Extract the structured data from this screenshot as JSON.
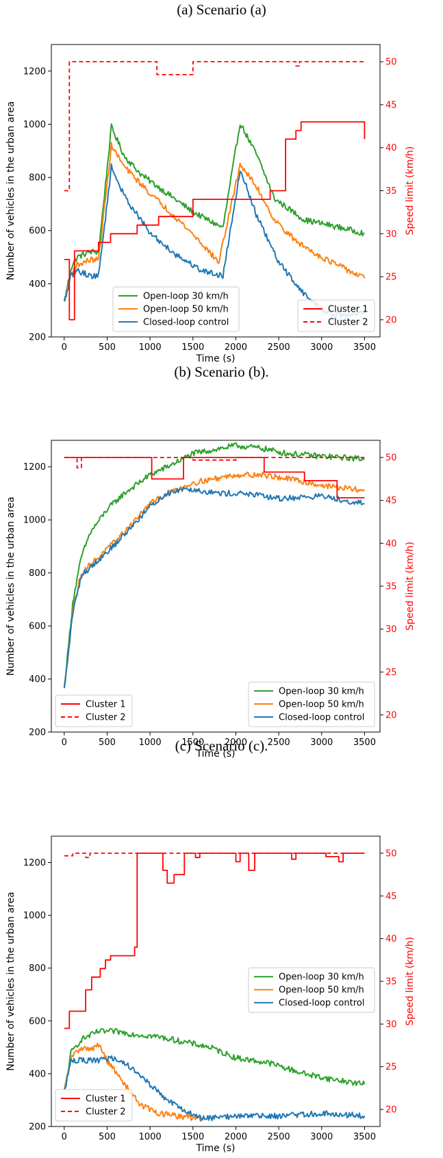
{
  "captions": [
    "(a) Scenario (a)",
    "(b) Scenario (b).",
    "(c) Scenario (c)."
  ],
  "colors": {
    "open30": "#2ca02c",
    "open50": "#ff7f0e",
    "closed": "#1f77b4",
    "speed": "#ff0000"
  },
  "chart_data": [
    {
      "type": "line",
      "title": "(a) Scenario (a)",
      "xlabel": "Time (s)",
      "ylabel": "Number of vehicles in the urban area",
      "y2label": "Speed limit (km/h)",
      "xlim": [
        -150,
        3680
      ],
      "ylim": [
        200,
        1300
      ],
      "y2lim": [
        18,
        52
      ],
      "xticks": [
        0,
        500,
        1000,
        1500,
        2000,
        2500,
        3000,
        3500
      ],
      "yticks": [
        200,
        400,
        600,
        800,
        1000,
        1200
      ],
      "y2ticks": [
        20,
        25,
        30,
        35,
        40,
        45,
        50
      ],
      "legend_left": {
        "placement": "lower-center",
        "entries": [
          "Open-loop 30 km/h",
          "Open-loop 50 km/h",
          "Closed-loop control"
        ]
      },
      "legend_right": {
        "placement": "lower-right",
        "entries": [
          "Cluster 1",
          "Cluster 2"
        ]
      },
      "series": [
        {
          "name": "Open-loop 30 km/h",
          "axis": "left",
          "x": [
            0,
            80,
            150,
            300,
            400,
            550,
            700,
            900,
            1200,
            1500,
            1850,
            2050,
            2250,
            2450,
            2800,
            3100,
            3500
          ],
          "y": [
            330,
            460,
            500,
            520,
            520,
            990,
            880,
            810,
            740,
            670,
            610,
            1005,
            880,
            720,
            640,
            620,
            590
          ]
        },
        {
          "name": "Open-loop 50 km/h",
          "axis": "left",
          "x": [
            0,
            80,
            150,
            300,
            400,
            550,
            700,
            1000,
            1300,
            1550,
            1800,
            2050,
            2250,
            2450,
            2700,
            3000,
            3500
          ],
          "y": [
            330,
            440,
            470,
            490,
            490,
            920,
            840,
            740,
            650,
            570,
            480,
            850,
            760,
            640,
            560,
            500,
            420
          ]
        },
        {
          "name": "Closed-loop control",
          "axis": "left",
          "x": [
            0,
            80,
            150,
            300,
            400,
            550,
            700,
            1000,
            1300,
            1600,
            1850,
            2050,
            2250,
            2500,
            2800,
            3050,
            3200,
            3500
          ],
          "y": [
            330,
            430,
            450,
            430,
            430,
            840,
            730,
            590,
            510,
            450,
            430,
            830,
            650,
            480,
            360,
            290,
            280,
            290
          ]
        },
        {
          "name": "Cluster 1",
          "axis": "right",
          "step": true,
          "x": [
            0,
            60,
            120,
            400,
            540,
            850,
            1100,
            1500,
            2400,
            2580,
            2700,
            2760,
            3500
          ],
          "y": [
            27,
            20,
            28,
            29,
            30,
            31,
            32,
            34,
            35,
            41,
            42,
            43,
            41
          ]
        },
        {
          "name": "Cluster 2",
          "axis": "right",
          "step": true,
          "dashed": true,
          "x": [
            0,
            60,
            90,
            400,
            1080,
            1500,
            2700,
            2740,
            3500
          ],
          "y": [
            35,
            50,
            50,
            50,
            48.5,
            50,
            49.5,
            50,
            50
          ]
        }
      ]
    },
    {
      "type": "line",
      "title": "(b) Scenario (b).",
      "xlabel": "Time (s)",
      "ylabel": "Number of vehicles in the urban area",
      "y2label": "Speed limit (km/h)",
      "xlim": [
        -150,
        3680
      ],
      "ylim": [
        200,
        1300
      ],
      "y2lim": [
        18,
        52
      ],
      "xticks": [
        0,
        500,
        1000,
        1500,
        2000,
        2500,
        3000,
        3500
      ],
      "yticks": [
        200,
        400,
        600,
        800,
        1000,
        1200
      ],
      "y2ticks": [
        20,
        25,
        30,
        35,
        40,
        45,
        50
      ],
      "legend_left": {
        "placement": "lower-left",
        "entries": [
          "Cluster 1",
          "Cluster 2"
        ]
      },
      "legend_right": {
        "placement": "lower-right",
        "entries": [
          "Open-loop 30 km/h",
          "Open-loop 50 km/h",
          "Closed-loop control"
        ]
      },
      "series": [
        {
          "name": "Open-loop 30 km/h",
          "axis": "left",
          "x": [
            0,
            100,
            200,
            300,
            500,
            700,
            1000,
            1200,
            1500,
            2000,
            2300,
            2600,
            3000,
            3500
          ],
          "y": [
            360,
            690,
            860,
            950,
            1040,
            1100,
            1170,
            1200,
            1250,
            1280,
            1270,
            1250,
            1240,
            1230
          ]
        },
        {
          "name": "Open-loop 50 km/h",
          "axis": "left",
          "x": [
            0,
            100,
            200,
            400,
            600,
            800,
            1000,
            1200,
            1500,
            2000,
            2300,
            2700,
            3000,
            3500
          ],
          "y": [
            360,
            660,
            800,
            860,
            920,
            990,
            1060,
            1100,
            1140,
            1170,
            1170,
            1150,
            1130,
            1110
          ]
        },
        {
          "name": "Closed-loop control",
          "axis": "left",
          "x": [
            0,
            100,
            200,
            400,
            600,
            800,
            1000,
            1200,
            1400,
            1800,
            2100,
            2500,
            3000,
            3500
          ],
          "y": [
            360,
            650,
            790,
            850,
            910,
            980,
            1050,
            1100,
            1120,
            1100,
            1100,
            1080,
            1090,
            1060
          ]
        },
        {
          "name": "Cluster 1",
          "axis": "right",
          "step": true,
          "x": [
            0,
            1020,
            1390,
            2330,
            2800,
            3180,
            3500
          ],
          "y": [
            50,
            47.5,
            50,
            48.3,
            47.3,
            45.3,
            45.3
          ]
        },
        {
          "name": "Cluster 2",
          "axis": "right",
          "step": true,
          "dashed": true,
          "x": [
            0,
            150,
            200,
            1500,
            2000,
            3500
          ],
          "y": [
            50,
            48.8,
            50,
            49.7,
            50,
            50
          ]
        }
      ]
    },
    {
      "type": "line",
      "title": "(c) Scenario (c).",
      "xlabel": "Time (s)",
      "ylabel": "Number of vehicles in the urban area",
      "y2label": "Speed limit (km/h)",
      "xlim": [
        -150,
        3680
      ],
      "ylim": [
        200,
        1300
      ],
      "y2lim": [
        18,
        52
      ],
      "xticks": [
        0,
        500,
        1000,
        1500,
        2000,
        2500,
        3000,
        3500
      ],
      "yticks": [
        200,
        400,
        600,
        800,
        1000,
        1200
      ],
      "y2ticks": [
        20,
        25,
        30,
        35,
        40,
        45,
        50
      ],
      "legend_left": {
        "placement": "lower-left",
        "entries": [
          "Cluster 1",
          "Cluster 2"
        ]
      },
      "legend_right": {
        "placement": "center-right",
        "entries": [
          "Open-loop 30 km/h",
          "Open-loop 50 km/h",
          "Closed-loop control"
        ]
      },
      "series": [
        {
          "name": "Open-loop 30 km/h",
          "axis": "left",
          "x": [
            0,
            80,
            200,
            400,
            600,
            800,
            1100,
            1400,
            1700,
            2000,
            2400,
            2800,
            3100,
            3500
          ],
          "y": [
            330,
            480,
            530,
            560,
            560,
            550,
            540,
            520,
            500,
            460,
            440,
            400,
            380,
            360
          ]
        },
        {
          "name": "Open-loop 50 km/h",
          "axis": "left",
          "x": [
            0,
            80,
            200,
            300,
            400,
            500,
            700,
            900,
            1100,
            1300,
            1600
          ],
          "y": [
            330,
            460,
            500,
            490,
            510,
            450,
            360,
            280,
            250,
            240,
            230
          ]
        },
        {
          "name": "Closed-loop control",
          "axis": "left",
          "x": [
            0,
            80,
            200,
            400,
            600,
            800,
            1000,
            1200,
            1400,
            1600,
            2000,
            2500,
            3000,
            3500
          ],
          "y": [
            330,
            450,
            450,
            450,
            460,
            420,
            360,
            300,
            260,
            230,
            240,
            240,
            250,
            240
          ]
        },
        {
          "name": "Cluster 1",
          "axis": "right",
          "step": true,
          "x": [
            0,
            60,
            250,
            320,
            420,
            480,
            540,
            820,
            850,
            1150,
            1200,
            1280,
            1350,
            1400,
            1450,
            1530,
            1580,
            2000,
            2050,
            2150,
            2220,
            2650,
            2700,
            3050,
            3200,
            3250,
            3500
          ],
          "y": [
            29.5,
            31.5,
            34,
            35.5,
            36.5,
            37.5,
            38,
            39,
            50,
            48,
            46.5,
            47.5,
            47.5,
            50,
            50,
            49.5,
            50,
            49,
            50,
            48,
            50,
            49.3,
            50,
            49.6,
            49,
            50,
            50
          ]
        },
        {
          "name": "Cluster 2",
          "axis": "right",
          "step": true,
          "dashed": true,
          "x": [
            0,
            100,
            250,
            300,
            3500
          ],
          "y": [
            49.7,
            50,
            49.5,
            50,
            50
          ]
        }
      ]
    }
  ]
}
